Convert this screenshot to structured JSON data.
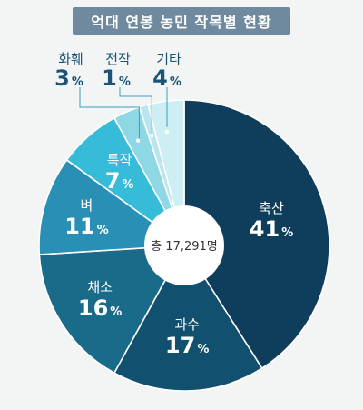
{
  "title": "억대 연봉 농민 작목별 현황",
  "chart_data": {
    "type": "pie",
    "title": "억대 연봉 농민 작목별 현황",
    "center_label": "총 17,291명",
    "slices": [
      {
        "label": "축산",
        "value": 41,
        "value_text": "41",
        "unit": "%",
        "color": "#0f3d5c"
      },
      {
        "label": "과수",
        "value": 17,
        "value_text": "17",
        "unit": "%",
        "color": "#11506e"
      },
      {
        "label": "채소",
        "value": 16,
        "value_text": "16",
        "unit": "%",
        "color": "#1a6a8a"
      },
      {
        "label": "벼",
        "value": 11,
        "value_text": "11",
        "unit": "%",
        "color": "#2a8fb4"
      },
      {
        "label": "특작",
        "value": 7,
        "value_text": "7",
        "unit": "%",
        "color": "#36bcd8"
      },
      {
        "label": "화훼",
        "value": 3,
        "value_text": "3",
        "unit": "%",
        "color": "#8ed8e6"
      },
      {
        "label": "전작",
        "value": 1,
        "value_text": "1",
        "unit": "%",
        "color": "#b9e6ee"
      },
      {
        "label": "기타",
        "value": 4,
        "value_text": "4",
        "unit": "%",
        "color": "#cdeef3"
      }
    ],
    "colors": {
      "label_dark": "#1a5578",
      "label_light": "#ffffff",
      "background": "#f3f4f4",
      "title_bg": "#6f8a9e"
    }
  }
}
